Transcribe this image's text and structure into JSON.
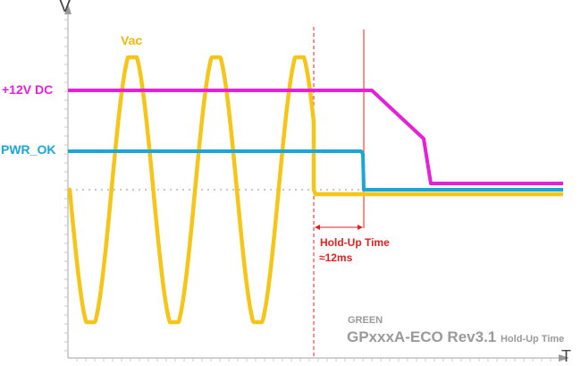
{
  "axes": {
    "y_label": "V",
    "x_label": "T"
  },
  "signals": {
    "vac": {
      "label": "Vac",
      "color": "#f5c518"
    },
    "dc12": {
      "label": "+12V DC",
      "color": "#e61fd8"
    },
    "pwr_ok": {
      "label": "PWR_OK",
      "color": "#1aa6d8"
    }
  },
  "annotation": {
    "title": "Hold-Up Time",
    "value": "≈12ms",
    "color": "#e32020"
  },
  "caption": {
    "brand": "GREEN",
    "model": "GPxxxA-ECO Rev3.1",
    "subtitle": "Hold-Up Time"
  }
}
